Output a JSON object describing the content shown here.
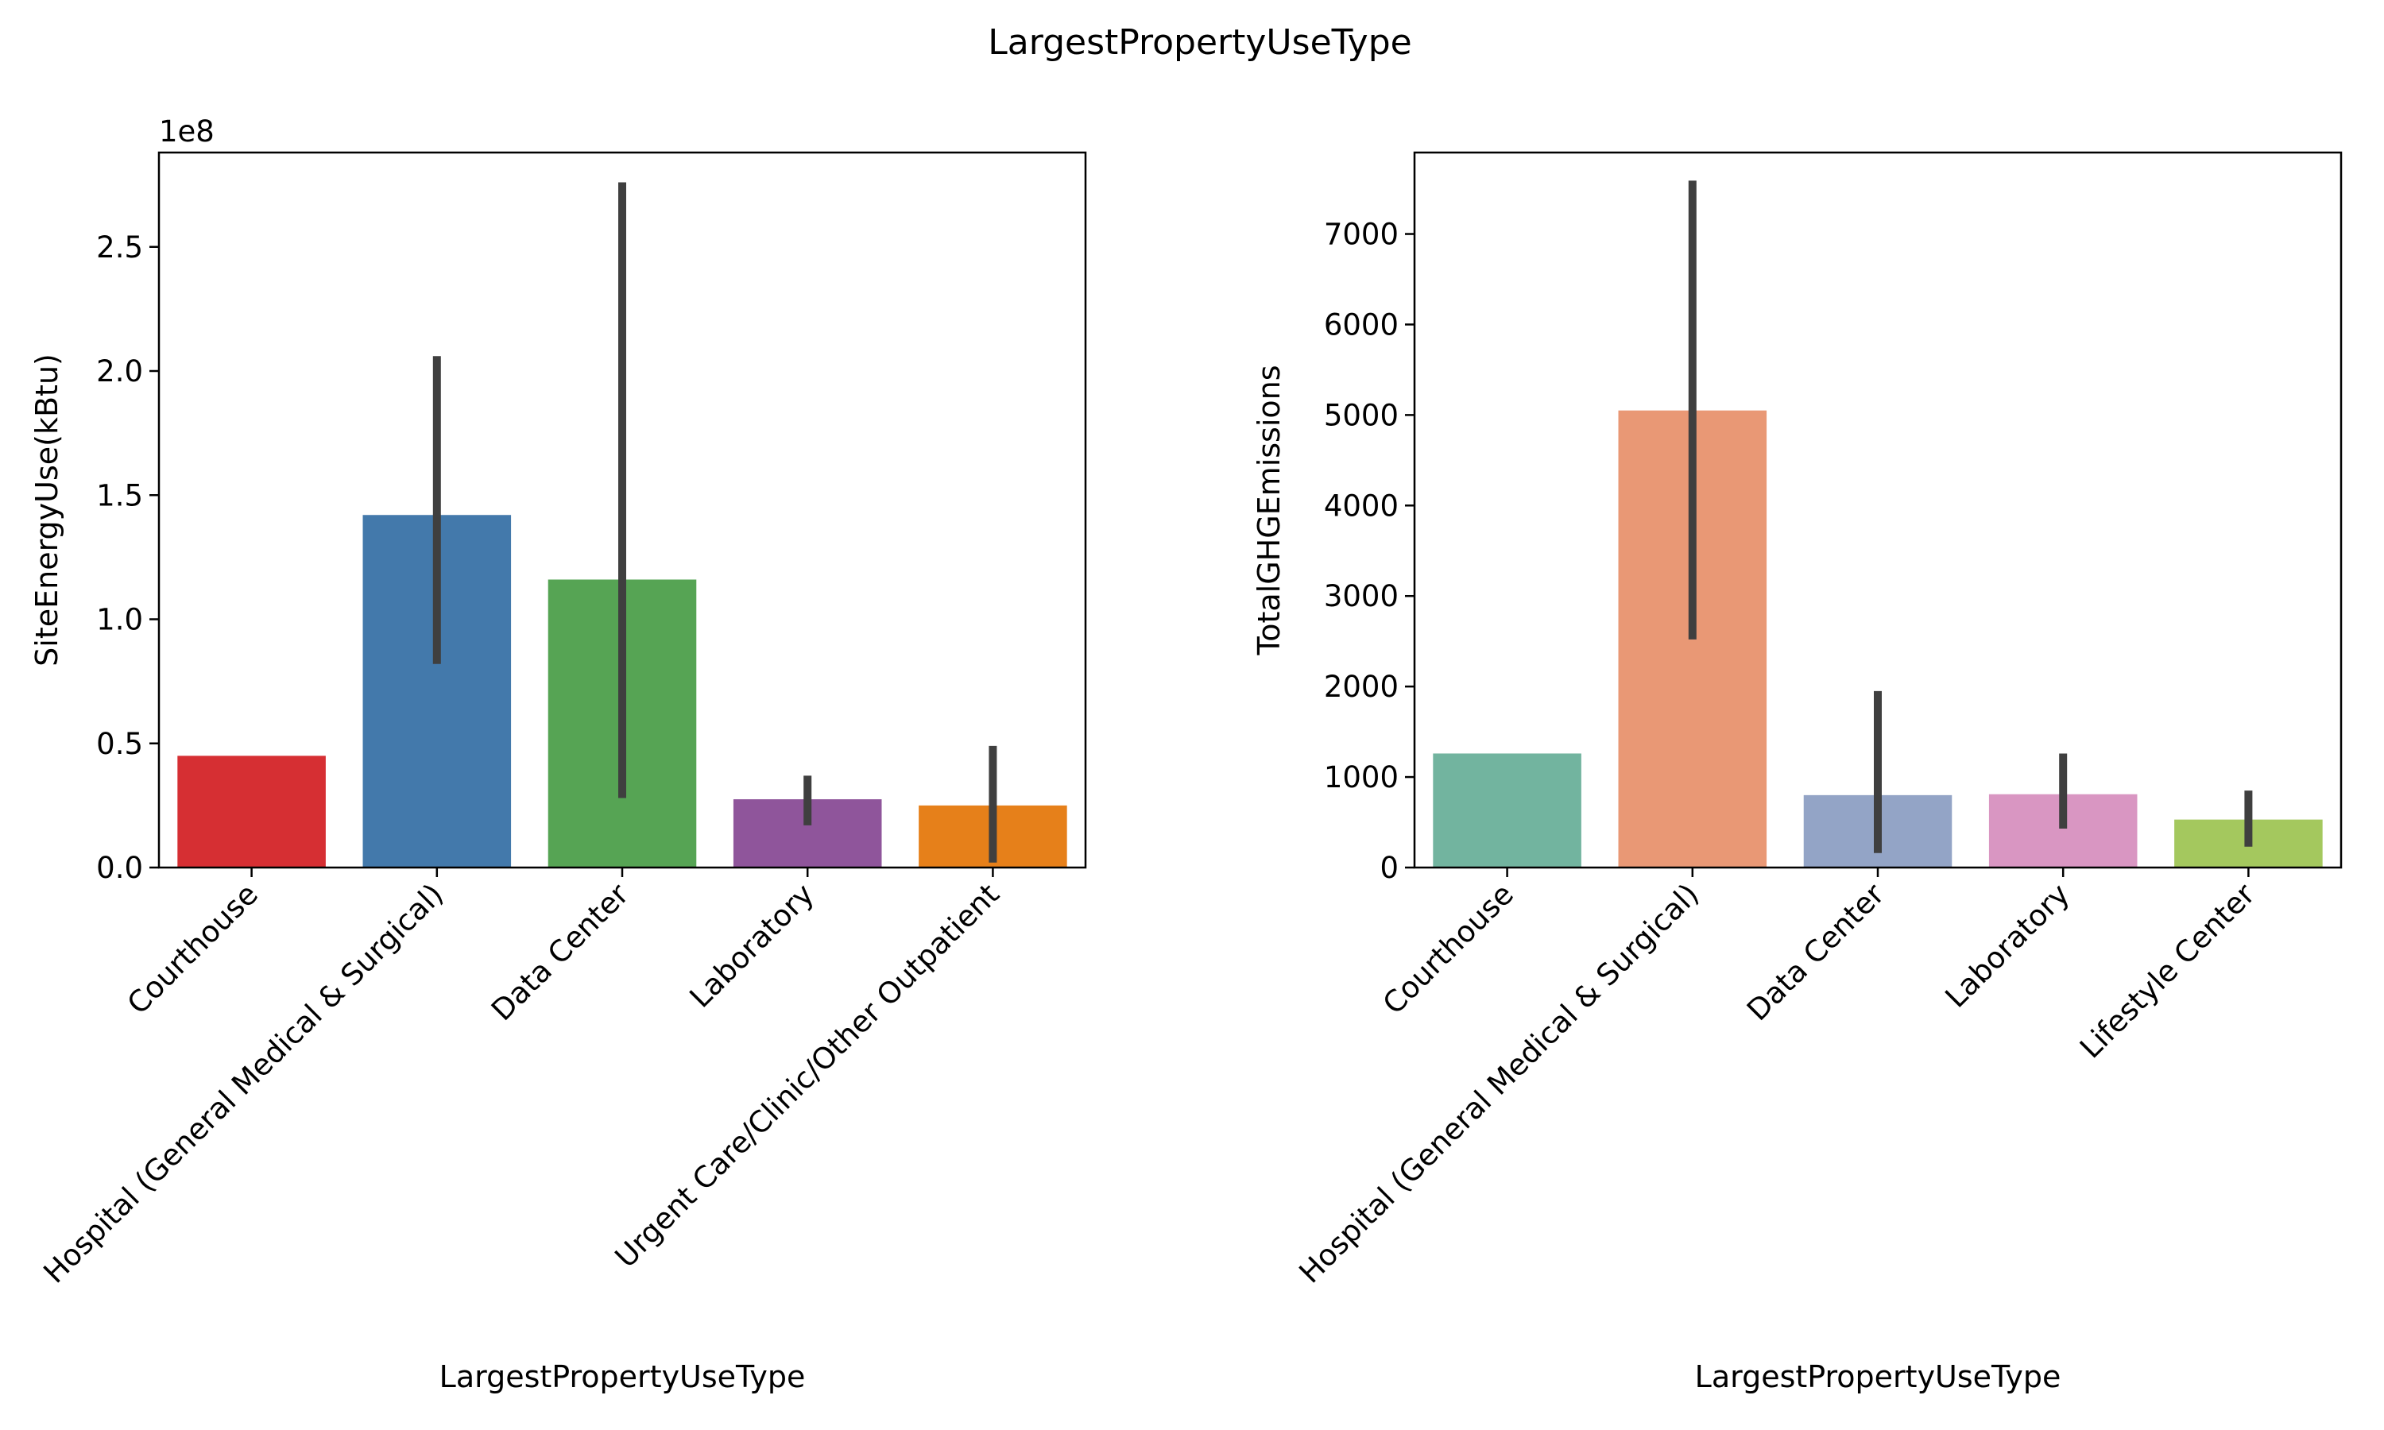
{
  "figure_title": "LargestPropertyUseType",
  "chart_data": [
    {
      "type": "bar",
      "title": "",
      "xlabel": "LargestPropertyUseType",
      "ylabel": "SiteEnergyUse(kBtu)",
      "y_offset_label": "1e8",
      "y_scale": 100000000,
      "ylim": [
        0,
        2.88
      ],
      "y_ticks": [
        0.0,
        0.5,
        1.0,
        1.5,
        2.0,
        2.5
      ],
      "y_tick_labels": [
        "0.0",
        "0.5",
        "1.0",
        "1.5",
        "2.0",
        "2.5"
      ],
      "grid": false,
      "categories": [
        "Courthouse",
        "Hospital (General Medical & Surgical)",
        "Data Center",
        "Laboratory",
        "Urgent Care/Clinic/Other Outpatient"
      ],
      "values": [
        0.45,
        1.42,
        1.16,
        0.275,
        0.25
      ],
      "error_low": [
        null,
        0.82,
        0.28,
        0.17,
        0.02
      ],
      "error_high": [
        null,
        2.06,
        2.76,
        0.37,
        0.49
      ],
      "colors": [
        "#d62f33",
        "#4379ab",
        "#56a454",
        "#8f559b",
        "#e6801a"
      ]
    },
    {
      "type": "bar",
      "title": "",
      "xlabel": "LargestPropertyUseType",
      "ylabel": "TotalGHGEmissions",
      "ylim": [
        0,
        7900
      ],
      "y_ticks": [
        0,
        1000,
        2000,
        3000,
        4000,
        5000,
        6000,
        7000
      ],
      "y_tick_labels": [
        "0",
        "1000",
        "2000",
        "3000",
        "4000",
        "5000",
        "6000",
        "7000"
      ],
      "grid": false,
      "categories": [
        "Courthouse",
        "Hospital (General Medical & Surgical)",
        "Data Center",
        "Laboratory",
        "Lifestyle Center"
      ],
      "values": [
        1260,
        5050,
        800,
        810,
        530
      ],
      "error_low": [
        null,
        2520,
        160,
        430,
        230
      ],
      "error_high": [
        null,
        7590,
        1950,
        1260,
        850
      ],
      "colors": [
        "#72b49f",
        "#e99875",
        "#93a4c6",
        "#d996c2",
        "#a4c85e"
      ]
    }
  ]
}
